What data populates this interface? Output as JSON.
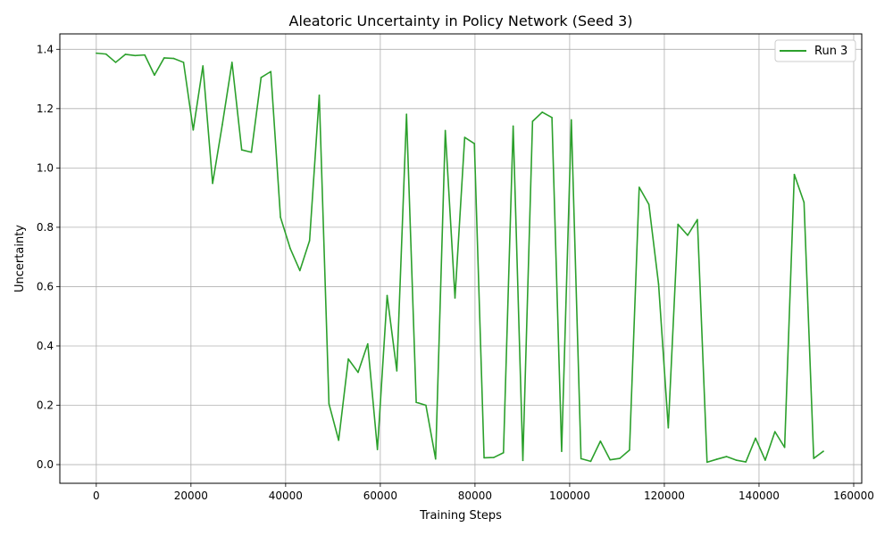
{
  "chart_data": {
    "type": "line",
    "title": "Aleatoric Uncertainty in Policy Network (Seed 3)",
    "xlabel": "Training Steps",
    "ylabel": "Uncertainty",
    "xlim": [
      -7700,
      161700
    ],
    "ylim": [
      -0.063,
      1.452
    ],
    "xticks": [
      0,
      20000,
      40000,
      60000,
      80000,
      100000,
      120000,
      140000,
      160000
    ],
    "xtick_labels": [
      "0",
      "20000",
      "40000",
      "60000",
      "80000",
      "100000",
      "120000",
      "140000",
      "160000"
    ],
    "yticks": [
      0.0,
      0.2,
      0.4,
      0.6,
      0.8,
      1.0,
      1.2,
      1.4
    ],
    "ytick_labels": [
      "0.0",
      "0.2",
      "0.4",
      "0.6",
      "0.8",
      "1.0",
      "1.2",
      "1.4"
    ],
    "grid": true,
    "legend_position": "top-right",
    "series": [
      {
        "name": "Run 3",
        "color": "#2ca02c",
        "x": [
          0,
          2048,
          4096,
          6144,
          8192,
          10240,
          12288,
          14336,
          16384,
          18432,
          20480,
          22528,
          24576,
          26624,
          28672,
          30720,
          32768,
          34816,
          36864,
          38912,
          40960,
          43008,
          45056,
          47104,
          49152,
          51200,
          53248,
          55296,
          57344,
          59392,
          61440,
          63488,
          65536,
          67584,
          69632,
          71680,
          73728,
          75776,
          77824,
          79872,
          81920,
          83968,
          86016,
          88064,
          90112,
          92160,
          94208,
          96256,
          98304,
          100352,
          102400,
          104448,
          106496,
          108544,
          110592,
          112640,
          114688,
          116736,
          118784,
          120832,
          122880,
          124928,
          126976,
          129024,
          131072,
          133120,
          135168,
          137216,
          139264,
          141312,
          143360,
          145408,
          147456,
          149504,
          151552,
          153600
        ],
        "y": [
          1.387,
          1.384,
          1.356,
          1.383,
          1.379,
          1.381,
          1.313,
          1.371,
          1.369,
          1.356,
          1.128,
          1.344,
          0.948,
          1.146,
          1.356,
          1.061,
          1.053,
          1.305,
          1.325,
          0.834,
          0.729,
          0.654,
          0.755,
          1.245,
          0.205,
          0.082,
          0.356,
          0.311,
          0.407,
          0.051,
          0.57,
          0.316,
          1.181,
          0.21,
          0.2,
          0.019,
          1.126,
          0.562,
          1.103,
          1.082,
          0.023,
          0.024,
          0.04,
          1.141,
          0.014,
          1.157,
          1.188,
          1.17,
          0.045,
          1.162,
          0.02,
          0.011,
          0.079,
          0.016,
          0.021,
          0.049,
          0.935,
          0.877,
          0.608,
          0.124,
          0.81,
          0.773,
          0.826,
          0.008,
          0.018,
          0.027,
          0.015,
          0.009,
          0.089,
          0.015,
          0.111,
          0.058,
          0.978,
          0.884,
          0.021,
          0.045
        ]
      }
    ]
  }
}
